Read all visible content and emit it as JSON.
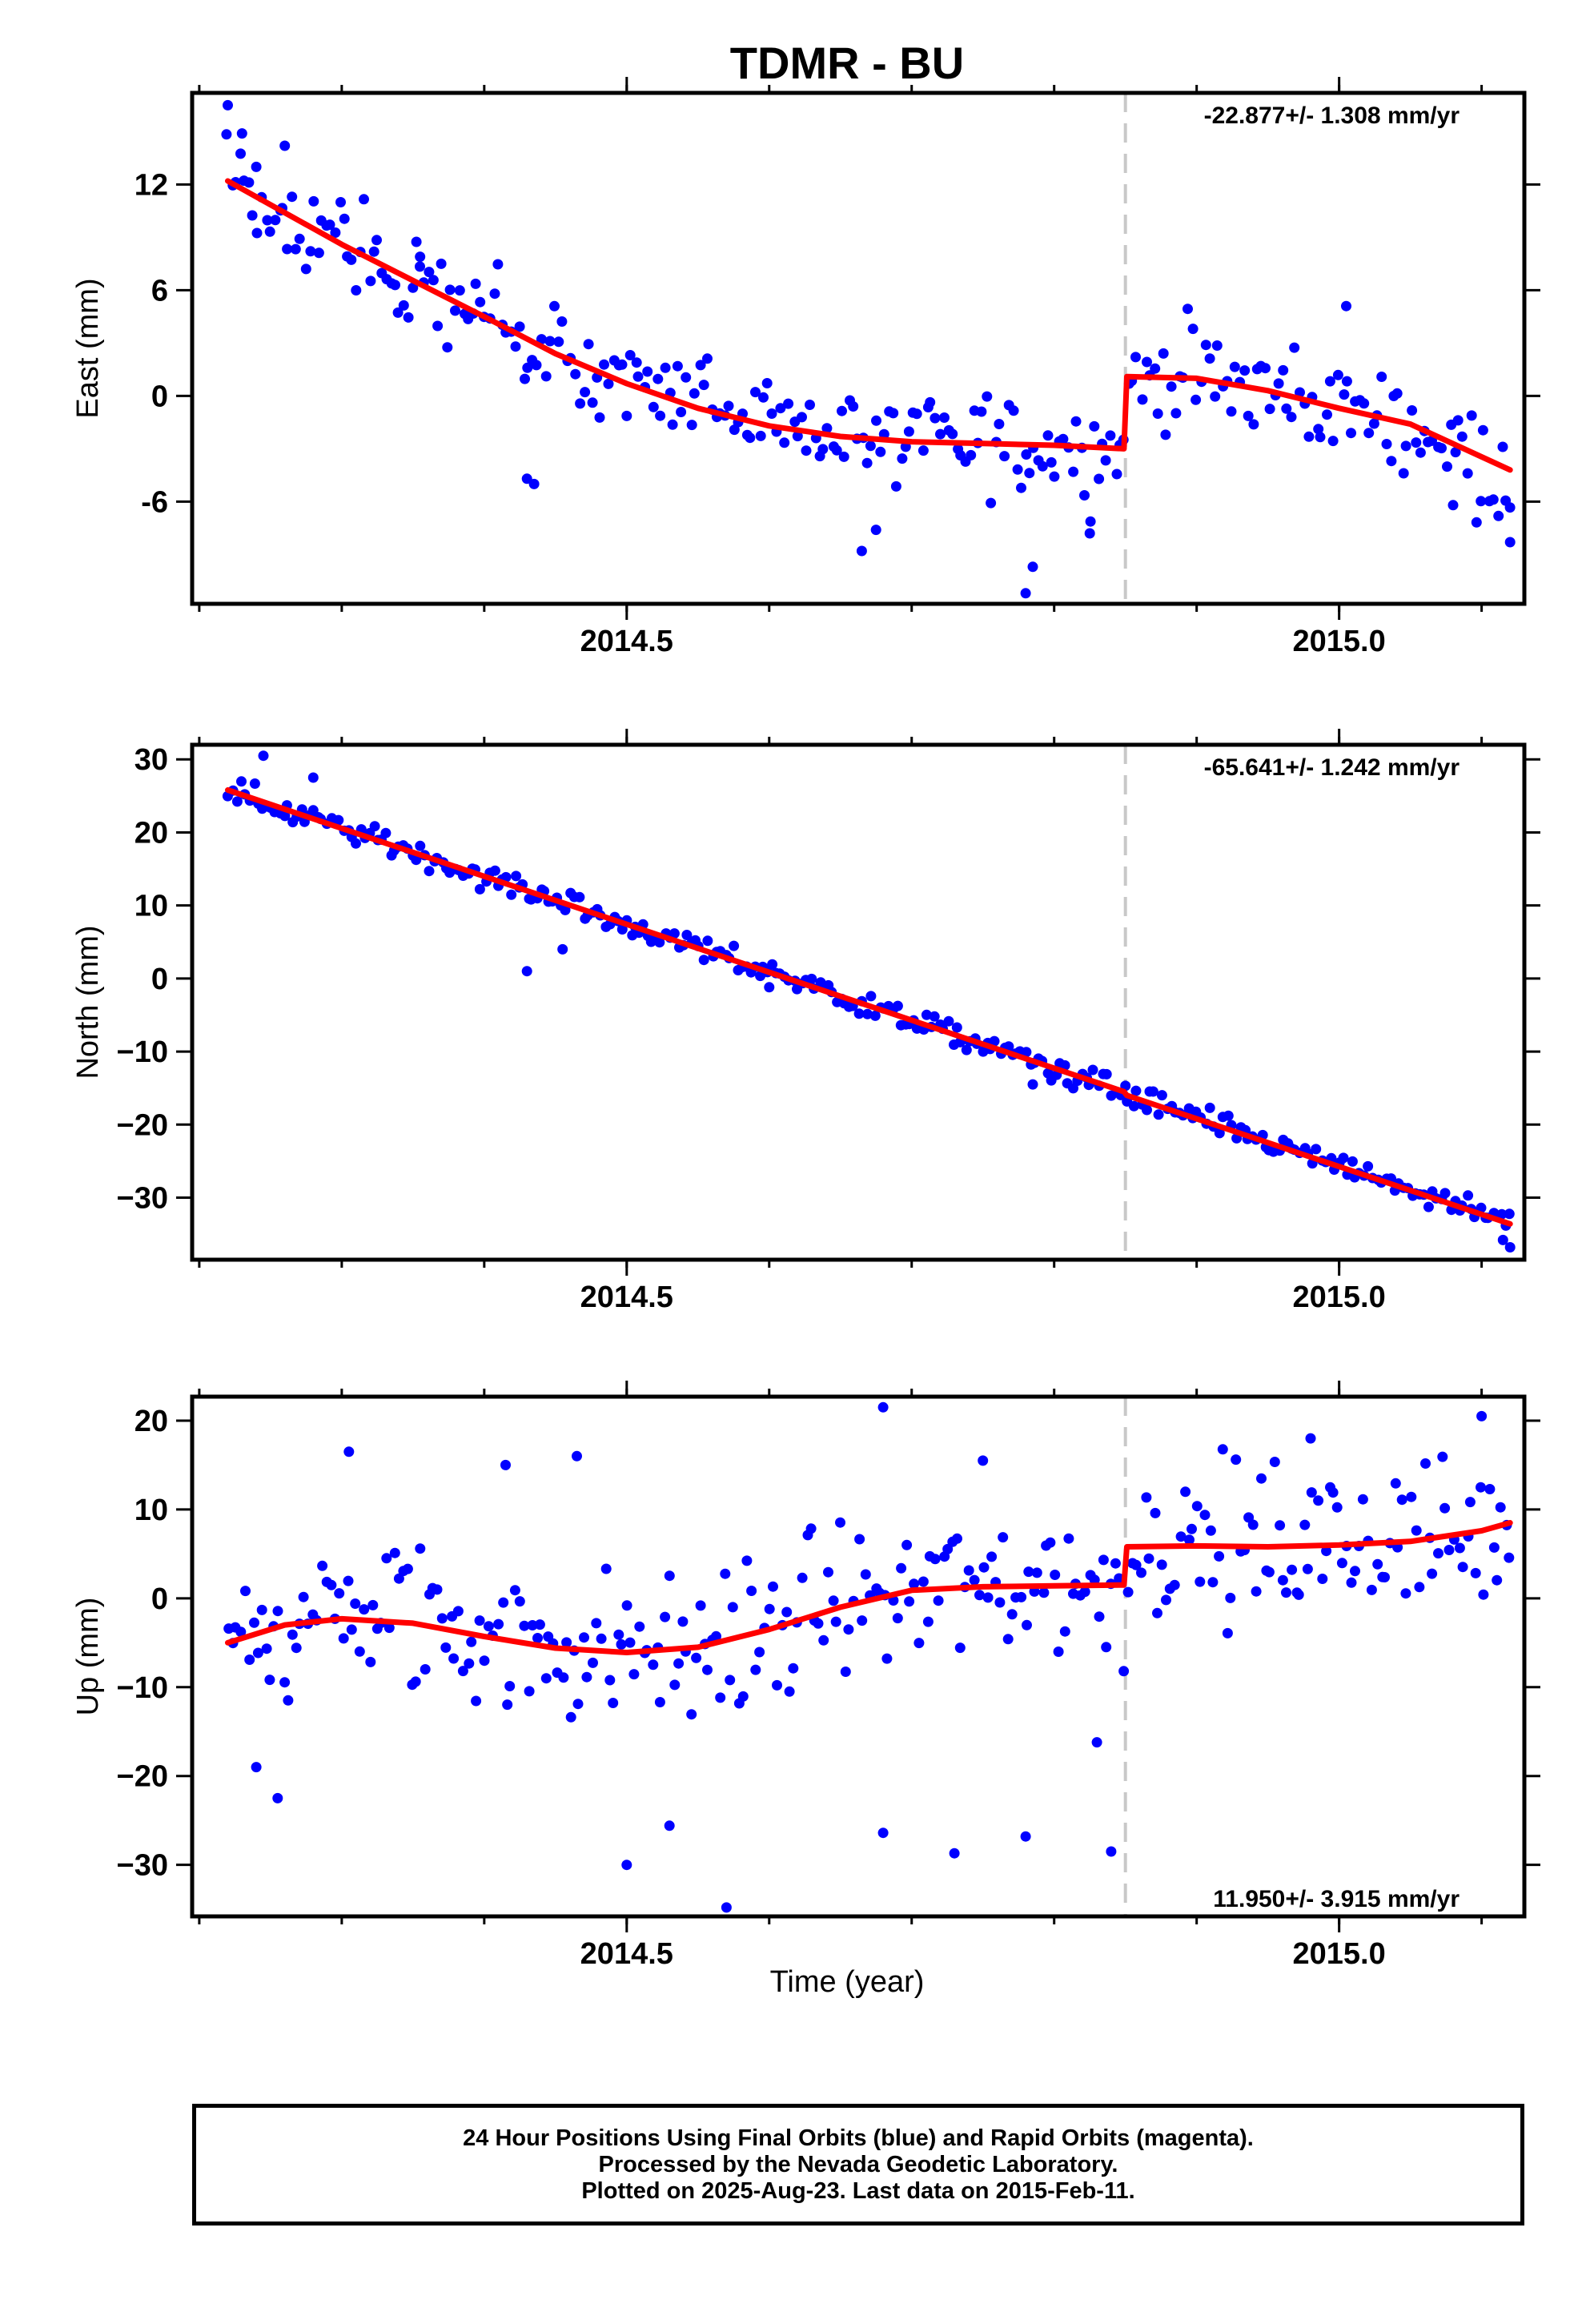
{
  "chart_data": {
    "type": "scatter",
    "title": "TDMR - BU",
    "xlabel": "Time (year)",
    "xlim": [
      2014.195,
      2015.13
    ],
    "x_ticks": [
      2014.5,
      2015.0
    ],
    "x_tick_labels": [
      "2014.5",
      "2015.0"
    ],
    "x_minor_ticks": [
      2014.2,
      2014.3,
      2014.4,
      2014.5,
      2014.6,
      2014.7,
      2014.8,
      2014.9,
      2015.0,
      2015.1
    ],
    "offset_epoch": 2014.85,
    "point_color": "#0000ff",
    "fit_color": "#ff0000",
    "offset_line_color": "#c8c8c8",
    "panels": [
      {
        "name": "East",
        "ylabel": "East (mm)",
        "ylim": [
          -11.8,
          17.2
        ],
        "y_ticks": [
          12,
          6,
          0,
          -6
        ],
        "y_tick_labels": [
          "12",
          "6",
          "0",
          "-6"
        ],
        "rate_label": "-22.877+/- 1.308 mm/yr",
        "rate_position": "top-right",
        "fit": {
          "x": [
            2014.22,
            2014.3,
            2014.4,
            2014.45,
            2014.5,
            2014.55,
            2014.6,
            2014.65,
            2014.7,
            2014.75,
            2014.8,
            2014.849,
            2014.851,
            2014.9,
            2014.95,
            2015.0,
            2015.05,
            2015.12
          ],
          "y": [
            12.2,
            8.6,
            4.5,
            2.4,
            0.7,
            -0.7,
            -1.7,
            -2.3,
            -2.6,
            -2.7,
            -2.8,
            -3.0,
            1.1,
            1.0,
            0.3,
            -0.7,
            -1.6,
            -4.2
          ]
        },
        "outliers": {
          "x": [
            2014.22,
            2014.23,
            2014.24,
            2014.26,
            2014.355,
            2014.43,
            2014.435,
            2014.665,
            2014.675,
            2014.78,
            2014.785,
            2014.825,
            2015.005,
            2015.08,
            2015.12
          ],
          "y": [
            16.5,
            14.9,
            13.0,
            14.2,
            7.9,
            -4.7,
            -5.0,
            -8.8,
            -7.6,
            -11.2,
            -9.7,
            -7.8,
            5.1,
            -6.2,
            -8.3
          ]
        }
      },
      {
        "name": "North",
        "ylabel": "North (mm)",
        "ylim": [
          -38.5,
          32.0
        ],
        "y_ticks": [
          30,
          20,
          10,
          0,
          -10,
          -20,
          -30
        ],
        "y_tick_labels": [
          "30",
          "20",
          "10",
          "0",
          "−10",
          "−20",
          "−30"
        ],
        "rate_label": "-65.641+/- 1.242 mm/yr",
        "rate_position": "top-right",
        "fit": {
          "x": [
            2014.22,
            2014.849,
            2014.851,
            2015.12
          ],
          "y": [
            25.8,
            -15.5,
            -16.0,
            -33.6
          ]
        },
        "outliers": {
          "x": [
            2014.245,
            2014.28,
            2014.43,
            2014.455,
            2014.6,
            2014.785,
            2015.12,
            2015.115
          ],
          "y": [
            30.5,
            27.5,
            1.0,
            4.0,
            -1.2,
            -14.5,
            -36.8,
            -35.8
          ]
        }
      },
      {
        "name": "Up",
        "ylabel": "Up (mm)",
        "ylim": [
          -35.8,
          22.7
        ],
        "y_ticks": [
          20,
          10,
          0,
          -10,
          -20,
          -30
        ],
        "y_tick_labels": [
          "20",
          "10",
          "0",
          "−10",
          "−20",
          "−30"
        ],
        "rate_label": "11.950+/- 3.915 mm/yr",
        "rate_position": "bottom-right",
        "fit": {
          "x": [
            2014.22,
            2014.26,
            2014.3,
            2014.35,
            2014.4,
            2014.45,
            2014.5,
            2014.55,
            2014.6,
            2014.65,
            2014.7,
            2014.75,
            2014.8,
            2014.849,
            2014.851,
            2014.9,
            2014.95,
            2015.0,
            2015.05,
            2015.1,
            2015.12
          ],
          "y": [
            -5.0,
            -3.0,
            -2.3,
            -2.8,
            -4.3,
            -5.6,
            -6.1,
            -5.5,
            -3.5,
            -1.0,
            0.9,
            1.3,
            1.4,
            1.5,
            5.8,
            5.9,
            5.8,
            6.0,
            6.4,
            7.6,
            8.5
          ]
        },
        "outliers": {
          "x": [
            2014.68,
            2014.305,
            2014.465,
            2014.415,
            2014.57,
            2014.5,
            2014.24,
            2014.255,
            2014.53,
            2014.73,
            2015.1,
            2014.98,
            2014.75,
            2014.84,
            2014.78,
            2014.68,
            2014.83
          ],
          "y": [
            21.5,
            16.5,
            16.0,
            15.0,
            -34.8,
            -30.0,
            -19.0,
            -22.5,
            -25.6,
            -28.7,
            20.5,
            18.0,
            15.5,
            -28.5,
            -26.8,
            -26.4,
            -16.2
          ]
        }
      }
    ],
    "notes": [
      "24 Hour Positions Using Final Orbits (blue) and Rapid Orbits (magenta).",
      "Processed by the Nevada Geodetic Laboratory.",
      "Plotted on 2025-Aug-23. Last data on 2015-Feb-11."
    ]
  }
}
